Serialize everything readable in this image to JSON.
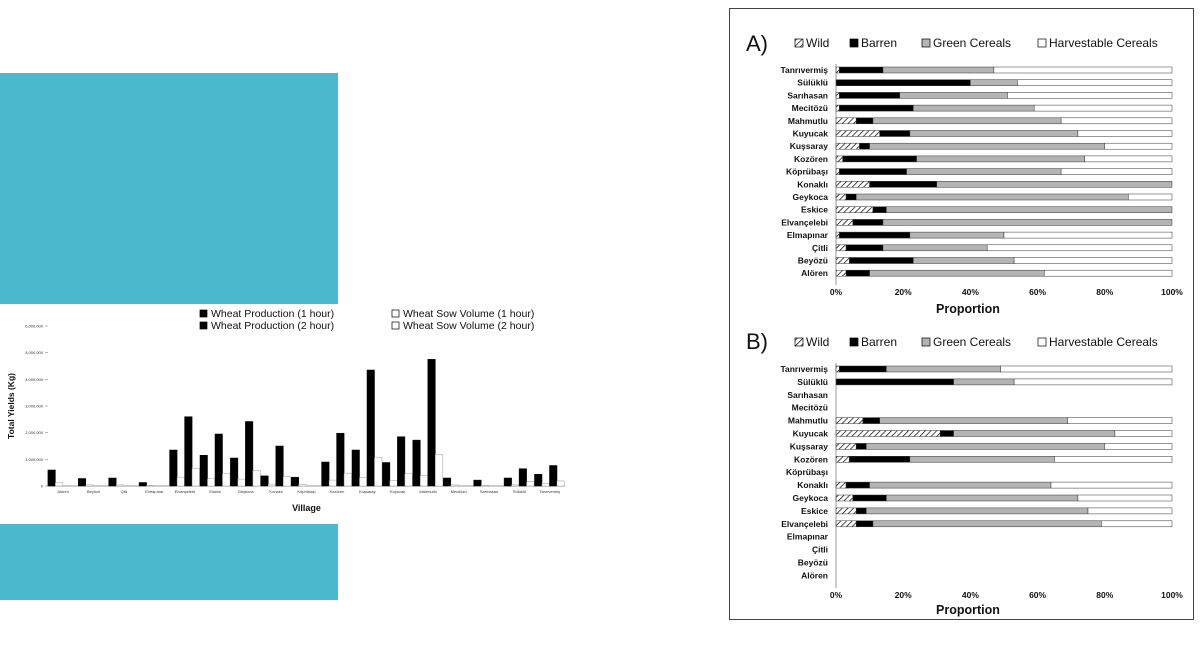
{
  "chart_data": [
    {
      "type": "bar",
      "xlabel": "Village",
      "ylabel": "Total Yields (Kg)",
      "ylim": [
        0,
        6000000
      ],
      "yticks": [
        "0",
        "1,000,000",
        "2,000,000",
        "3,000,000",
        "4,000,000",
        "5,000,000",
        "6,000,000"
      ],
      "categories": [
        "Alören",
        "Beyözü",
        "Çitli",
        "Elmapınar",
        "Elvançelebi",
        "Eskice",
        "Geykoca",
        "Konaklı",
        "Köprübaşı",
        "Kozören",
        "Kuşsaray",
        "Kuyucak",
        "Mahmutlu",
        "Mecitözü",
        "Sarıhasan",
        "Sülüklü",
        "Tanrıvermiş"
      ],
      "series": [
        {
          "name": "Wheat Production (1 hour)",
          "color": "#000000",
          "values": [
            600000,
            280000,
            300000,
            130000,
            1350000,
            1150000,
            1050000,
            380000,
            330000,
            900000,
            1350000,
            880000,
            1720000,
            300000,
            220000,
            300000,
            440000
          ]
        },
        {
          "name": "Wheat Sow Volume (1 hour)",
          "color": "#ffffff",
          "values": [
            120000,
            40000,
            40000,
            20000,
            330000,
            270000,
            260000,
            70000,
            60000,
            220000,
            320000,
            210000,
            390000,
            40000,
            30000,
            40000,
            100000
          ]
        },
        {
          "name": "Wheat Production (2 hour)",
          "color": "#000000",
          "values": [
            0,
            0,
            0,
            0,
            2600000,
            1950000,
            2420000,
            1500000,
            0,
            1980000,
            4350000,
            1850000,
            4750000,
            0,
            0,
            650000,
            770000
          ]
        },
        {
          "name": "Wheat Sow Volume (2 hour)",
          "color": "#ffffff",
          "values": [
            0,
            0,
            0,
            0,
            660000,
            480000,
            580000,
            350000,
            0,
            480000,
            1080000,
            460000,
            1180000,
            0,
            0,
            160000,
            190000
          ]
        }
      ]
    },
    {
      "type": "bar",
      "orientation": "horizontal",
      "stacked": true,
      "panel_label": "A)",
      "xlabel": "Proportion",
      "xticks": [
        "0%",
        "20%",
        "40%",
        "60%",
        "80%",
        "100%"
      ],
      "legend": [
        "Wild",
        "Barren",
        "Green Cereals",
        "Harvestable Cereals"
      ],
      "categories": [
        "Tanrıvermiş",
        "Sülüklü",
        "Sarıhasan",
        "Mecitözü",
        "Mahmutlu",
        "Kuyucak",
        "Kuşsaray",
        "Kozören",
        "Köprübaşı",
        "Konaklı",
        "Geykoca",
        "Eskice",
        "Elvançelebi",
        "Elmapınar",
        "Çitli",
        "Beyözü",
        "Alören"
      ],
      "series": [
        {
          "name": "Wild",
          "values": [
            1,
            0,
            1,
            1,
            6,
            13,
            7,
            2,
            1,
            10,
            3,
            11,
            5,
            1,
            3,
            4,
            3
          ]
        },
        {
          "name": "Barren",
          "values": [
            13,
            40,
            18,
            22,
            5,
            9,
            3,
            22,
            20,
            20,
            3,
            4,
            9,
            21,
            11,
            19,
            7
          ]
        },
        {
          "name": "Green Cereals",
          "values": [
            33,
            14,
            32,
            36,
            56,
            50,
            70,
            50,
            46,
            70,
            81,
            85,
            86,
            28,
            31,
            30,
            52
          ]
        },
        {
          "name": "Harvestable Cereals",
          "values": [
            53,
            46,
            49,
            41,
            33,
            28,
            20,
            26,
            33,
            0,
            13,
            0,
            0,
            50,
            55,
            47,
            38
          ]
        }
      ]
    },
    {
      "type": "bar",
      "orientation": "horizontal",
      "stacked": true,
      "panel_label": "B)",
      "xlabel": "Proportion",
      "xticks": [
        "0%",
        "20%",
        "40%",
        "60%",
        "80%",
        "100%"
      ],
      "legend": [
        "Wild",
        "Barren",
        "Green Cereals",
        "Harvestable Cereals"
      ],
      "categories": [
        "Tanrıvermiş",
        "Sülüklü",
        "Sarıhasan",
        "Mecitözü",
        "Mahmutlu",
        "Kuyucak",
        "Kuşsaray",
        "Kozören",
        "Köprübaşı",
        "Konaklı",
        "Geykoca",
        "Eskice",
        "Elvançelebi",
        "Elmapınar",
        "Çitli",
        "Beyözü",
        "Alören"
      ],
      "series": [
        {
          "name": "Wild",
          "values": [
            1,
            0,
            null,
            null,
            8,
            31,
            6,
            4,
            null,
            3,
            5,
            6,
            6,
            null,
            null,
            null,
            null
          ]
        },
        {
          "name": "Barren",
          "values": [
            14,
            35,
            null,
            null,
            5,
            4,
            3,
            18,
            null,
            7,
            10,
            3,
            5,
            null,
            null,
            null,
            null
          ]
        },
        {
          "name": "Green Cereals",
          "values": [
            34,
            18,
            null,
            null,
            56,
            48,
            71,
            43,
            null,
            54,
            57,
            66,
            68,
            null,
            null,
            null,
            null
          ]
        },
        {
          "name": "Harvestable Cereals",
          "values": [
            51,
            47,
            null,
            null,
            31,
            17,
            20,
            35,
            null,
            36,
            28,
            25,
            21,
            null,
            null,
            null,
            null
          ]
        }
      ]
    }
  ]
}
